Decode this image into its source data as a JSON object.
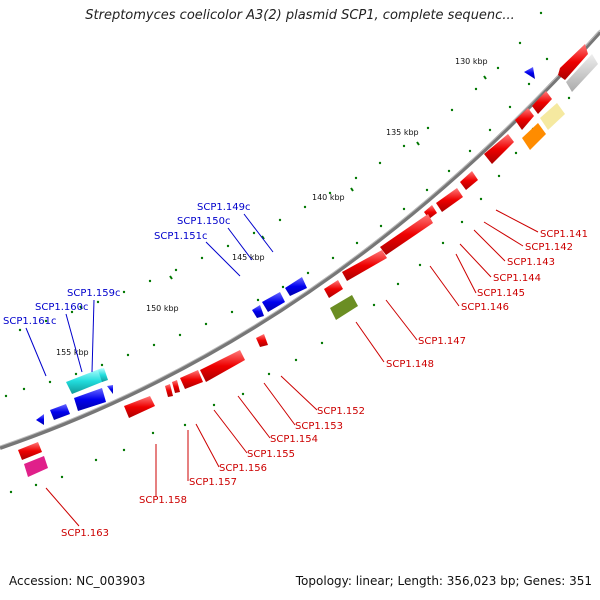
{
  "title": "Streptomyces coelicolor A3(2) plasmid SCP1, complete sequenc...",
  "footer": {
    "accession": "Accession: NC_003903",
    "summary": "Topology: linear; Length: 356,023 bp; Genes: 351"
  },
  "colors": {
    "forward_label": "#cc0000",
    "reverse_label": "#0000cc",
    "backbone": "#777777",
    "tick": "#007700"
  },
  "scale_labels": [
    "130 kbp",
    "135 kbp",
    "140 kbp",
    "145 kbp",
    "150 kbp",
    "155 kbp"
  ],
  "reverse_genes": [
    "SCP1.149c",
    "SCP1.150c",
    "SCP1.151c",
    "SCP1.159c",
    "SCP1.160c",
    "SCP1.161c"
  ],
  "forward_genes": [
    "SCP1.141",
    "SCP1.142",
    "SCP1.143",
    "SCP1.144",
    "SCP1.145",
    "SCP1.146",
    "SCP1.147",
    "SCP1.148",
    "SCP1.152",
    "SCP1.153",
    "SCP1.154",
    "SCP1.155",
    "SCP1.156",
    "SCP1.157",
    "SCP1.158",
    "SCP1.163"
  ],
  "icons": {
    "forward_arrow": "red-arrow-icon",
    "reverse_arrow": "blue-arrow-icon"
  }
}
